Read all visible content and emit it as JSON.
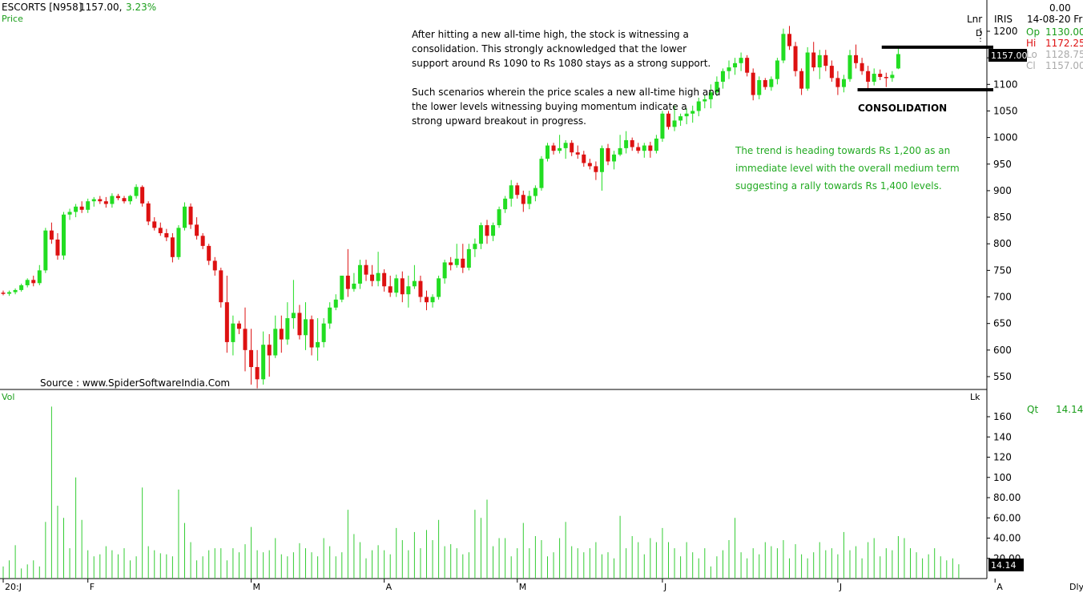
{
  "header": {
    "symbol": "ESCORTS [N958]",
    "last": "1157.00,",
    "change": "3.23%",
    "panel_label": "Price"
  },
  "info_box": {
    "value": "0.00",
    "date": "14-08-20 Fri",
    "lnr": "Lnr",
    "iris": "IRIS",
    "d_label": "D",
    "op_label": "Op",
    "op_value": "1130.00",
    "hi_label": "Hi",
    "hi_value": "1172.25",
    "lo_label": "Lo",
    "lo_value": "1128.75",
    "cl_label": "Cl",
    "cl_value": "1157.00",
    "qt_label": "Qt",
    "qt_value": "14.14",
    "lk_label": "Lk",
    "price_tag": "1157.00",
    "volume_tag": "14.14",
    "dly_label": "Dly"
  },
  "annotations": {
    "paragraph1": [
      "After hitting a new all-time high, the stock is witnessing a",
      "consolidation. This strongly acknowledged that the lower",
      "support around Rs 1090 to Rs 1080 stays as a strong support."
    ],
    "paragraph2": [
      "Such scenarios wherein the price scales a new all-time high and",
      "the lower levels witnessing buying momentum indicate a",
      "strong upward breakout in progress."
    ],
    "green_note": [
      "The trend is heading towards Rs 1,200 as an",
      "immediate level with the overall medium term",
      "suggesting a rally towards Rs 1,400 levels."
    ],
    "consolidation_label": "CONSOLIDATION",
    "source": "Source : www.SpiderSoftwareIndia.Com"
  },
  "volume_panel": {
    "label": "Vol"
  },
  "colors": {
    "up": "#22dd22",
    "down": "#dd1111",
    "volume": "#33cc33",
    "annotation_green": "#22aa22",
    "tag_bg": "#000000"
  },
  "chart_data": [
    {
      "type": "candlestick",
      "series_name": "Price",
      "price_axis_ticks": [
        550,
        600,
        650,
        700,
        750,
        800,
        850,
        900,
        950,
        1000,
        1050,
        1100,
        1150,
        1200
      ],
      "ylim": [
        520,
        1230
      ],
      "month_labels": [
        "20:J",
        "F",
        "M",
        "A",
        "M",
        "J",
        "J",
        "A"
      ],
      "month_positions": [
        0,
        14,
        41,
        63,
        85,
        109,
        138,
        164
      ],
      "consolidation_levels": [
        1090,
        1170
      ],
      "candles": [
        [
          708,
          712,
          703,
          706
        ],
        [
          706,
          712,
          702,
          709
        ],
        [
          709,
          716,
          705,
          713
        ],
        [
          713,
          725,
          710,
          722
        ],
        [
          722,
          735,
          718,
          732
        ],
        [
          732,
          740,
          720,
          726
        ],
        [
          726,
          760,
          722,
          750
        ],
        [
          750,
          830,
          745,
          825
        ],
        [
          825,
          840,
          800,
          808
        ],
        [
          808,
          820,
          770,
          778
        ],
        [
          778,
          860,
          770,
          855
        ],
        [
          855,
          866,
          845,
          860
        ],
        [
          860,
          875,
          850,
          870
        ],
        [
          870,
          880,
          858,
          864
        ],
        [
          864,
          885,
          858,
          880
        ],
        [
          880,
          888,
          870,
          884
        ],
        [
          884,
          890,
          875,
          880
        ],
        [
          880,
          888,
          868,
          875
        ],
        [
          875,
          895,
          868,
          890
        ],
        [
          890,
          894,
          882,
          886
        ],
        [
          886,
          890,
          876,
          880
        ],
        [
          880,
          892,
          874,
          890
        ],
        [
          890,
          912,
          885,
          907
        ],
        [
          907,
          910,
          870,
          876
        ],
        [
          876,
          880,
          835,
          842
        ],
        [
          842,
          850,
          825,
          830
        ],
        [
          830,
          840,
          815,
          820
        ],
        [
          820,
          828,
          805,
          812
        ],
        [
          812,
          820,
          765,
          775
        ],
        [
          775,
          835,
          770,
          830
        ],
        [
          830,
          878,
          825,
          870
        ],
        [
          870,
          876,
          828,
          836
        ],
        [
          836,
          850,
          808,
          815
        ],
        [
          815,
          820,
          790,
          796
        ],
        [
          796,
          800,
          760,
          768
        ],
        [
          768,
          775,
          740,
          750
        ],
        [
          750,
          755,
          680,
          690
        ],
        [
          690,
          740,
          595,
          615
        ],
        [
          615,
          665,
          590,
          650
        ],
        [
          650,
          655,
          630,
          640
        ],
        [
          640,
          680,
          560,
          600
        ],
        [
          600,
          640,
          535,
          568
        ],
        [
          568,
          600,
          528,
          545
        ],
        [
          545,
          635,
          535,
          610
        ],
        [
          610,
          630,
          550,
          590
        ],
        [
          590,
          665,
          585,
          640
        ],
        [
          640,
          665,
          595,
          620
        ],
        [
          620,
          690,
          610,
          660
        ],
        [
          660,
          732,
          640,
          670
        ],
        [
          670,
          685,
          620,
          628
        ],
        [
          628,
          690,
          600,
          658
        ],
        [
          658,
          665,
          590,
          605
        ],
        [
          605,
          660,
          580,
          615
        ],
        [
          615,
          660,
          605,
          650
        ],
        [
          650,
          690,
          640,
          680
        ],
        [
          680,
          705,
          675,
          695
        ],
        [
          695,
          740,
          690,
          740
        ],
        [
          740,
          790,
          700,
          715
        ],
        [
          715,
          745,
          710,
          725
        ],
        [
          725,
          770,
          715,
          760
        ],
        [
          760,
          770,
          730,
          742
        ],
        [
          742,
          760,
          720,
          730
        ],
        [
          730,
          785,
          720,
          745
        ],
        [
          745,
          752,
          710,
          720
        ],
        [
          720,
          740,
          700,
          708
        ],
        [
          708,
          742,
          700,
          735
        ],
        [
          735,
          748,
          690,
          705
        ],
        [
          705,
          740,
          680,
          720
        ],
        [
          720,
          760,
          715,
          730
        ],
        [
          730,
          740,
          690,
          700
        ],
        [
          700,
          712,
          675,
          690
        ],
        [
          690,
          705,
          680,
          700
        ],
        [
          700,
          740,
          695,
          735
        ],
        [
          735,
          770,
          725,
          765
        ],
        [
          765,
          775,
          750,
          760
        ],
        [
          760,
          800,
          755,
          772
        ],
        [
          772,
          800,
          745,
          755
        ],
        [
          755,
          800,
          750,
          790
        ],
        [
          790,
          810,
          775,
          800
        ],
        [
          800,
          840,
          790,
          835
        ],
        [
          835,
          845,
          800,
          815
        ],
        [
          815,
          840,
          805,
          835
        ],
        [
          835,
          870,
          830,
          865
        ],
        [
          865,
          890,
          858,
          885
        ],
        [
          885,
          920,
          870,
          910
        ],
        [
          910,
          915,
          885,
          892
        ],
        [
          892,
          900,
          860,
          875
        ],
        [
          875,
          900,
          865,
          890
        ],
        [
          890,
          910,
          880,
          905
        ],
        [
          905,
          965,
          900,
          960
        ],
        [
          960,
          990,
          955,
          985
        ],
        [
          985,
          990,
          968,
          975
        ],
        [
          975,
          1005,
          970,
          980
        ],
        [
          980,
          995,
          960,
          990
        ],
        [
          990,
          995,
          965,
          972
        ],
        [
          972,
          985,
          960,
          968
        ],
        [
          968,
          975,
          945,
          952
        ],
        [
          952,
          960,
          940,
          946
        ],
        [
          946,
          955,
          920,
          935
        ],
        [
          935,
          985,
          900,
          980
        ],
        [
          980,
          988,
          948,
          955
        ],
        [
          955,
          975,
          940,
          968
        ],
        [
          968,
          1005,
          965,
          980
        ],
        [
          980,
          1012,
          970,
          995
        ],
        [
          995,
          1000,
          975,
          982
        ],
        [
          982,
          990,
          970,
          975
        ],
        [
          975,
          990,
          962,
          985
        ],
        [
          985,
          992,
          962,
          975
        ],
        [
          975,
          1005,
          970,
          998
        ],
        [
          998,
          1050,
          992,
          1045
        ],
        [
          1045,
          1050,
          1015,
          1020
        ],
        [
          1020,
          1060,
          1012,
          1032
        ],
        [
          1032,
          1045,
          1022,
          1040
        ],
        [
          1040,
          1055,
          1025,
          1045
        ],
        [
          1045,
          1060,
          1028,
          1050
        ],
        [
          1050,
          1075,
          1040,
          1068
        ],
        [
          1068,
          1080,
          1055,
          1072
        ],
        [
          1072,
          1100,
          1055,
          1085
        ],
        [
          1085,
          1115,
          1078,
          1105
        ],
        [
          1105,
          1130,
          1092,
          1125
        ],
        [
          1125,
          1145,
          1110,
          1132
        ],
        [
          1132,
          1150,
          1118,
          1140
        ],
        [
          1140,
          1160,
          1125,
          1150
        ],
        [
          1150,
          1155,
          1115,
          1122
        ],
        [
          1122,
          1130,
          1070,
          1080
        ],
        [
          1080,
          1115,
          1072,
          1108
        ],
        [
          1108,
          1112,
          1090,
          1095
        ],
        [
          1095,
          1115,
          1088,
          1110
        ],
        [
          1110,
          1150,
          1100,
          1145
        ],
        [
          1145,
          1205,
          1140,
          1195
        ],
        [
          1195,
          1210,
          1165,
          1172
        ],
        [
          1172,
          1180,
          1115,
          1125
        ],
        [
          1125,
          1130,
          1080,
          1092
        ],
        [
          1092,
          1170,
          1088,
          1160
        ],
        [
          1160,
          1180,
          1125,
          1132
        ],
        [
          1132,
          1165,
          1110,
          1155
        ],
        [
          1155,
          1165,
          1125,
          1135
        ],
        [
          1135,
          1145,
          1105,
          1112
        ],
        [
          1112,
          1125,
          1080,
          1095
        ],
        [
          1095,
          1118,
          1085,
          1110
        ],
        [
          1110,
          1165,
          1105,
          1155
        ],
        [
          1155,
          1175,
          1130,
          1140
        ],
        [
          1140,
          1150,
          1118,
          1125
        ],
        [
          1125,
          1135,
          1092,
          1105
        ],
        [
          1105,
          1130,
          1098,
          1120
        ],
        [
          1120,
          1128,
          1108,
          1114
        ],
        [
          1114,
          1122,
          1095,
          1112
        ],
        [
          1112,
          1125,
          1105,
          1118
        ],
        [
          1130,
          1172.25,
          1128.75,
          1157
        ]
      ]
    },
    {
      "type": "bar",
      "series_name": "Vol",
      "ylim": [
        0,
        170
      ],
      "y_ticks": [
        20,
        40,
        60,
        80,
        100,
        120,
        140,
        160
      ],
      "y_tick_labels": [
        "20.00",
        "40.00",
        "60.00",
        "80.00",
        "100",
        "120",
        "140",
        "160"
      ],
      "values": [
        12,
        18,
        33,
        10,
        14,
        18,
        12,
        56,
        170,
        72,
        60,
        30,
        100,
        58,
        28,
        22,
        24,
        32,
        28,
        24,
        30,
        18,
        22,
        90,
        32,
        28,
        25,
        24,
        22,
        88,
        55,
        36,
        18,
        22,
        28,
        30,
        30,
        18,
        30,
        26,
        34,
        51,
        28,
        26,
        28,
        40,
        24,
        22,
        26,
        35,
        30,
        26,
        22,
        40,
        32,
        22,
        26,
        68,
        44,
        36,
        20,
        28,
        33,
        28,
        24,
        50,
        38,
        28,
        46,
        30,
        48,
        38,
        58,
        32,
        34,
        30,
        24,
        26,
        68,
        60,
        78,
        32,
        40,
        40,
        22,
        30,
        55,
        30,
        42,
        38,
        22,
        26,
        40,
        56,
        32,
        30,
        26,
        30,
        36,
        24,
        26,
        20,
        62,
        30,
        42,
        36,
        24,
        40,
        36,
        50,
        36,
        30,
        22,
        36,
        26,
        20,
        30,
        12,
        22,
        28,
        38,
        60,
        26,
        20,
        30,
        24,
        36,
        32,
        30,
        38,
        20,
        34,
        24,
        20,
        26,
        36,
        28,
        30,
        24,
        46,
        28,
        32,
        20,
        36,
        40,
        22,
        30,
        28,
        42,
        40,
        30,
        26,
        20,
        24,
        30,
        22,
        18,
        20,
        14.14
      ]
    }
  ]
}
